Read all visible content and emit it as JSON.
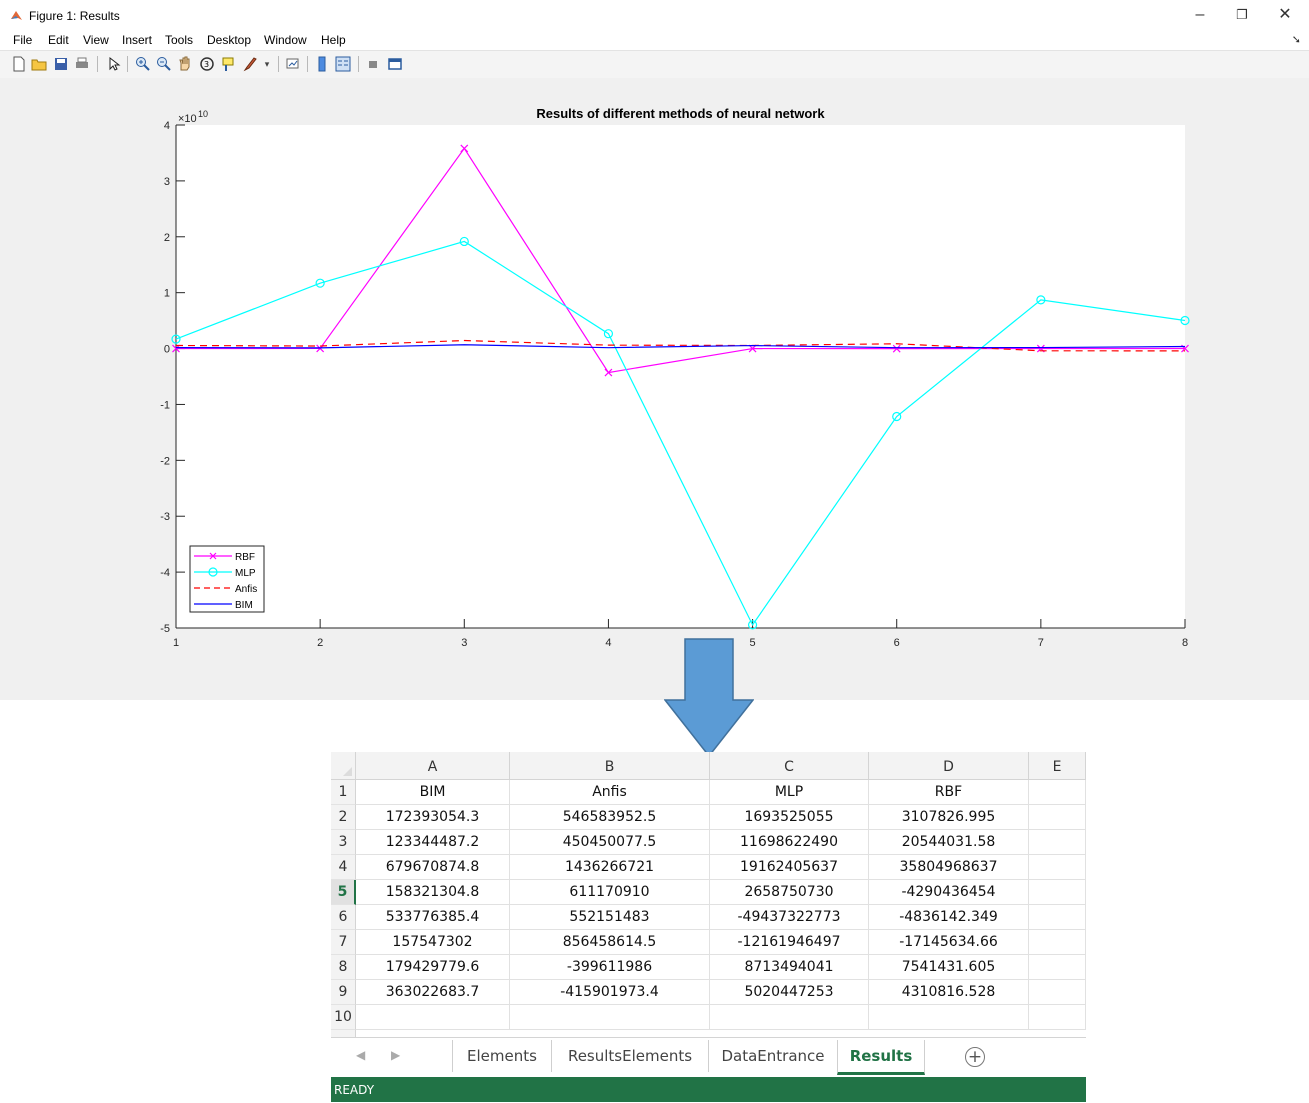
{
  "figure": {
    "title": "Figure 1: Results",
    "menu": [
      "File",
      "Edit",
      "View",
      "Insert",
      "Tools",
      "Desktop",
      "Window",
      "Help"
    ],
    "window_controls": {
      "minimize": "–",
      "restore": "❐",
      "close": "✕"
    },
    "toolbar_icons": [
      "new-file-icon",
      "open-folder-icon",
      "save-icon",
      "print-icon",
      "pointer-icon",
      "zoom-in-icon",
      "zoom-out-icon",
      "pan-icon",
      "rotate-3d-icon",
      "data-cursor-icon",
      "brush-icon",
      "link-plot-icon",
      "colorbar-icon",
      "legend-icon",
      "hide-plot-tools-icon",
      "show-plot-tools-icon"
    ]
  },
  "chart_data": {
    "type": "line",
    "title": "Results of different methods of neural network",
    "exponent_label": "×10",
    "exponent_power": "10",
    "x": [
      1,
      2,
      3,
      4,
      5,
      6,
      7,
      8
    ],
    "xlim": [
      1,
      8
    ],
    "ylim": [
      -5,
      4
    ],
    "xticks": [
      "1",
      "2",
      "3",
      "4",
      "5",
      "6",
      "7",
      "8"
    ],
    "yticks": [
      "4",
      "3",
      "2",
      "1",
      "0",
      "-1",
      "-2",
      "-3",
      "-4",
      "-5"
    ],
    "series": [
      {
        "name": "RBF",
        "color": "#ff00ff",
        "style": "solid",
        "marker": "x",
        "values": [
          3107826.995,
          20544031.58,
          35804968637,
          -4290436454,
          -4836142.349,
          -17145634.66,
          7541431.605,
          4310816.528
        ]
      },
      {
        "name": "MLP",
        "color": "#00ffff",
        "style": "solid",
        "marker": "o",
        "values": [
          1693525055,
          11698622490,
          19162405637,
          2658750730,
          -49437322773,
          -12161946497,
          8713494041,
          5020447253
        ]
      },
      {
        "name": "Anfis",
        "color": "#ff0000",
        "style": "dashed",
        "marker": "none",
        "values": [
          546583952.5,
          450450077.5,
          1436266721,
          611170910,
          552151483,
          856458614.5,
          -399611986,
          -415901973.4
        ]
      },
      {
        "name": "BIM",
        "color": "#0000ff",
        "style": "solid",
        "marker": "none",
        "values": [
          172393054.3,
          123344487.2,
          679670874.8,
          158321304.8,
          533776385.4,
          157547302,
          179429779.6,
          363022683.7
        ]
      }
    ],
    "legend_location": "bottom-left",
    "grid": false
  },
  "spreadsheet": {
    "columns": [
      "A",
      "B",
      "C",
      "D",
      "E"
    ],
    "rows": [
      [
        "BIM",
        "Anfis",
        "MLP",
        "RBF",
        ""
      ],
      [
        "172393054.3",
        "546583952.5",
        "1693525055",
        "3107826.995",
        ""
      ],
      [
        "123344487.2",
        "450450077.5",
        "11698622490",
        "20544031.58",
        ""
      ],
      [
        "679670874.8",
        "1436266721",
        "19162405637",
        "35804968637",
        ""
      ],
      [
        "158321304.8",
        "611170910",
        "2658750730",
        "-4290436454",
        ""
      ],
      [
        "533776385.4",
        "552151483",
        "-49437322773",
        "-4836142.349",
        ""
      ],
      [
        "157547302",
        "856458614.5",
        "-12161946497",
        "-17145634.66",
        ""
      ],
      [
        "179429779.6",
        "-399611986",
        "8713494041",
        "7541431.605",
        ""
      ],
      [
        "363022683.7",
        "-415901973.4",
        "5020447253",
        "4310816.528",
        ""
      ],
      [
        "",
        "",
        "",
        "",
        ""
      ]
    ],
    "row_numbers": [
      "1",
      "2",
      "3",
      "4",
      "5",
      "6",
      "7",
      "8",
      "9",
      "10"
    ],
    "selected_row": "5",
    "sheet_tabs": [
      "Elements",
      "ResultsElements",
      "DataEntrance",
      "Results"
    ],
    "active_tab": "Results",
    "nav_prev": "◀",
    "nav_next": "▶",
    "add_sheet": "+",
    "status": "READY",
    "accent": "#217346"
  },
  "colors": {
    "arrow": "#5b9bd5",
    "arrow_border": "#41719c",
    "excel_green": "#217346"
  }
}
